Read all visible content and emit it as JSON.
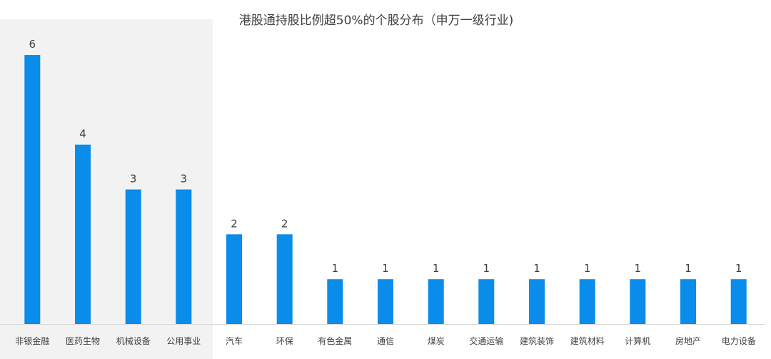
{
  "chart_data": {
    "type": "bar",
    "title": "港股通持股比例超50%的个股分布（申万一级行业)",
    "categories": [
      "非银金融",
      "医药生物",
      "机械设备",
      "公用事业",
      "汽车",
      "环保",
      "有色金属",
      "通信",
      "煤炭",
      "交通运输",
      "建筑装饰",
      "建筑材料",
      "计算机",
      "房地产",
      "电力设备"
    ],
    "values": [
      6,
      4,
      3,
      3,
      2,
      2,
      1,
      1,
      1,
      1,
      1,
      1,
      1,
      1,
      1
    ],
    "ylim": [
      0,
      6
    ],
    "highlight_categories": [
      "非银金融",
      "医药生物",
      "机械设备",
      "公用事业"
    ],
    "grid": false,
    "legend": "none",
    "colors": {
      "bar": "#0A8CEB",
      "highlight_band": "#F2F2F2",
      "text": "#404040",
      "axis": "#D9D9D9"
    }
  }
}
